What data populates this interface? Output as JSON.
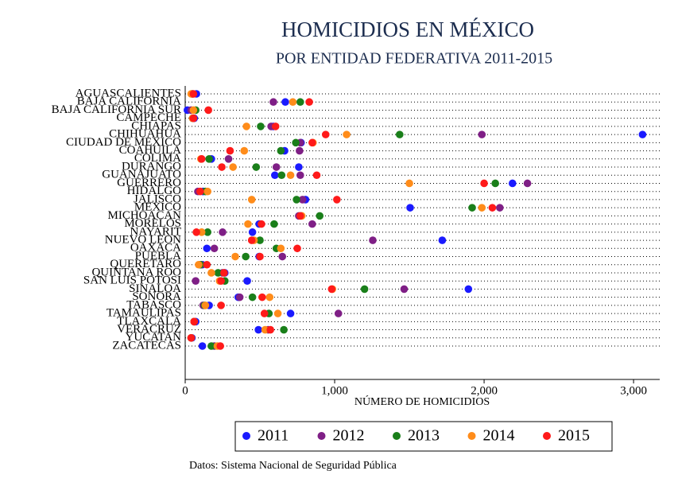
{
  "chart_data": {
    "type": "dot",
    "title": "HOMICIDIOS EN MÉXICO",
    "subtitle": "POR ENTIDAD FEDERATIVA 2011-2015",
    "x_label": "NÚMERO DE HOMICIDIOS",
    "note": "Datos: Sistema Nacional de Seguridad Pública",
    "categories": [
      "AGUASCALIENTES",
      "BAJA CALIFORNIA",
      "BAJA CALIFORNIA SUR",
      "CAMPECHE",
      "CHIAPAS",
      "CHIHUAHUA",
      "CIUDAD DE MEXICO",
      "COAHUILA",
      "COLIMA",
      "DURANGO",
      "GUANAJUATO",
      "GUERRERO",
      "HIDALGO",
      "JALISCO",
      "MEXICO",
      "MICHOACAN",
      "MORELOS",
      "NAYARIT",
      "NUEVO LEON",
      "OAXACA",
      "PUEBLA",
      "QUERETARO",
      "QUINTANA ROO",
      "SAN LUIS POTOSI",
      "SINALOA",
      "SONORA",
      "TABASCO",
      "TAMAULIPAS",
      "TLAXCALA",
      "VERACRUZ",
      "YUCATAN",
      "ZACATECAS"
    ],
    "series": [
      {
        "name": "2011",
        "color": "#1a1aff",
        "values": [
          75,
          670,
          15,
          60,
          590,
          3060,
          775,
          665,
          175,
          760,
          600,
          2190,
          120,
          805,
          1505,
          775,
          495,
          450,
          1720,
          145,
          495,
          115,
          265,
          415,
          1895,
          355,
          160,
          705,
          70,
          490,
          45,
          115
        ]
      },
      {
        "name": "2012",
        "color": "#7f1f86",
        "values": [
          50,
          590,
          40,
          55,
          575,
          1985,
          770,
          765,
          290,
          610,
          770,
          2290,
          85,
          785,
          2105,
          760,
          850,
          250,
          1255,
          195,
          650,
          105,
          250,
          70,
          1465,
          365,
          120,
          1025,
          60,
          555,
          40,
          195
        ]
      },
      {
        "name": "2013",
        "color": "#1a7f1a",
        "values": [
          45,
          770,
          70,
          50,
          505,
          1435,
          740,
          640,
          160,
          475,
          645,
          2075,
          135,
          745,
          1920,
          900,
          595,
          150,
          500,
          610,
          405,
          100,
          220,
          265,
          1200,
          450,
          130,
          560,
          60,
          660,
          40,
          175
        ]
      },
      {
        "name": "2014",
        "color": "#ff8c1a",
        "values": [
          40,
          720,
          55,
          50,
          410,
          1080,
          855,
          395,
          105,
          320,
          705,
          1500,
          150,
          445,
          1985,
          780,
          420,
          110,
          460,
          640,
          335,
          90,
          175,
          230,
          985,
          565,
          135,
          620,
          60,
          535,
          40,
          215
        ]
      },
      {
        "name": "2015",
        "color": "#ff1a1a",
        "values": [
          55,
          830,
          155,
          55,
          605,
          940,
          850,
          300,
          110,
          245,
          880,
          2000,
          100,
          1015,
          2055,
          770,
          510,
          75,
          445,
          750,
          500,
          145,
          260,
          240,
          980,
          515,
          240,
          530,
          60,
          570,
          40,
          235
        ]
      }
    ],
    "xlim": [
      0,
      3175
    ],
    "xticks": [
      0,
      {
        "value": 1000,
        "label": "1,000"
      },
      {
        "value": 2000,
        "label": "2,000"
      },
      {
        "value": 3000,
        "label": "3,000"
      }
    ],
    "grid": true,
    "legend": "bottom"
  }
}
